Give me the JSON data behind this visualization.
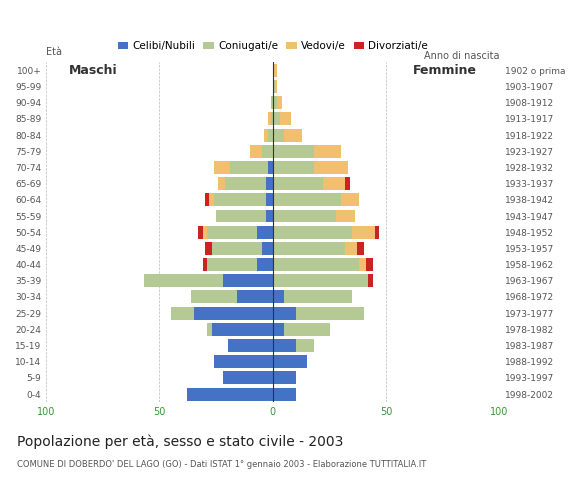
{
  "age_groups": [
    "0-4",
    "5-9",
    "10-14",
    "15-19",
    "20-24",
    "25-29",
    "30-34",
    "35-39",
    "40-44",
    "45-49",
    "50-54",
    "55-59",
    "60-64",
    "65-69",
    "70-74",
    "75-79",
    "80-84",
    "85-89",
    "90-94",
    "95-99",
    "100+"
  ],
  "birth_years": [
    "1998-2002",
    "1993-1997",
    "1988-1992",
    "1983-1987",
    "1978-1982",
    "1973-1977",
    "1968-1972",
    "1963-1967",
    "1958-1962",
    "1953-1957",
    "1948-1952",
    "1943-1947",
    "1938-1942",
    "1933-1937",
    "1928-1932",
    "1923-1927",
    "1918-1922",
    "1913-1917",
    "1908-1912",
    "1903-1907",
    "1902 o prima"
  ],
  "maschi": {
    "celibe": [
      38,
      22,
      26,
      20,
      27,
      35,
      16,
      22,
      7,
      5,
      7,
      3,
      3,
      3,
      2,
      0,
      0,
      0,
      0,
      0,
      0
    ],
    "coniugato": [
      0,
      0,
      0,
      0,
      2,
      10,
      20,
      35,
      22,
      22,
      22,
      22,
      23,
      18,
      17,
      5,
      2,
      1,
      1,
      0,
      0
    ],
    "vedovo": [
      0,
      0,
      0,
      0,
      0,
      0,
      0,
      0,
      0,
      0,
      2,
      0,
      2,
      3,
      7,
      5,
      2,
      1,
      0,
      0,
      0
    ],
    "divorziato": [
      0,
      0,
      0,
      0,
      0,
      0,
      0,
      0,
      2,
      3,
      2,
      0,
      2,
      0,
      0,
      0,
      0,
      0,
      0,
      0,
      0
    ]
  },
  "femmine": {
    "celibe": [
      10,
      10,
      15,
      10,
      5,
      10,
      5,
      0,
      0,
      0,
      0,
      0,
      0,
      0,
      0,
      0,
      0,
      0,
      0,
      0,
      0
    ],
    "coniugato": [
      0,
      0,
      0,
      8,
      20,
      30,
      30,
      42,
      38,
      32,
      35,
      28,
      30,
      22,
      18,
      18,
      5,
      3,
      2,
      1,
      0
    ],
    "vedovo": [
      0,
      0,
      0,
      0,
      0,
      0,
      0,
      0,
      3,
      5,
      10,
      8,
      8,
      10,
      15,
      12,
      8,
      5,
      2,
      1,
      2
    ],
    "divorziato": [
      0,
      0,
      0,
      0,
      0,
      0,
      0,
      2,
      3,
      3,
      2,
      0,
      0,
      2,
      0,
      0,
      0,
      0,
      0,
      0,
      0
    ]
  },
  "colors": {
    "celibe": "#4472c4",
    "coniugato": "#b5c994",
    "vedovo": "#f0c070",
    "divorziato": "#cc2222"
  },
  "xlim": 100,
  "title": "Popolazione per età, sesso e stato civile - 2003",
  "subtitle": "COMUNE DI DOBERDO' DEL LAGO (GO) - Dati ISTAT 1° gennaio 2003 - Elaborazione TUTTITALIA.IT",
  "ylabel_left": "Età",
  "ylabel_right": "Anno di nascita",
  "legend_labels": [
    "Celibi/Nubili",
    "Coniugati/e",
    "Vedovi/e",
    "Divorziati/e"
  ],
  "bg_color": "#ffffff",
  "grid_color": "#bbbbbb"
}
